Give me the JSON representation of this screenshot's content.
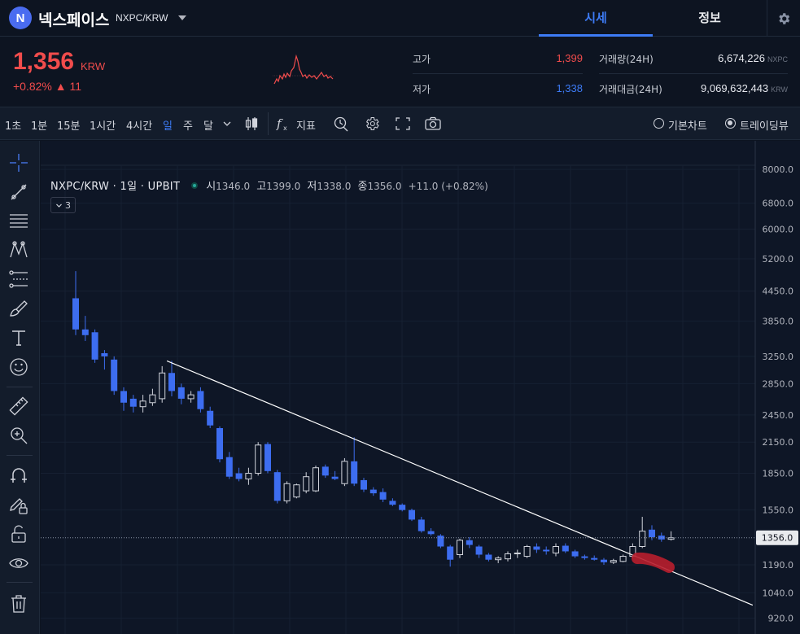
{
  "header": {
    "logo_letter": "N",
    "coin_name": "넥스페이스",
    "pair_code": "NXPC/KRW",
    "tabs": [
      {
        "label": "시세",
        "active": true
      },
      {
        "label": "정보",
        "active": false
      }
    ],
    "icons": [
      "chevron-down-icon",
      "gear-icon"
    ]
  },
  "ticker": {
    "price": "1,356",
    "unit": "KRW",
    "change_pct": "+0.82%",
    "change_arrow": "▲",
    "change_amount": "11",
    "high_label": "고가",
    "high_value": "1,399",
    "low_label": "저가",
    "low_value": "1,338",
    "volume_label": "거래량(24H)",
    "volume_value": "6,674,226",
    "volume_unit": "NXPC",
    "turnover_label": "거래대금(24H)",
    "turnover_value": "9,069,632,443",
    "turnover_unit": "KRW",
    "colors": {
      "up": "#f04c4c",
      "down": "#3d7bf5"
    }
  },
  "toolbar": {
    "intervals": [
      "1초",
      "1분",
      "15분",
      "1시간",
      "4시간",
      "일",
      "주",
      "달"
    ],
    "active_interval": "일",
    "indicator_label": "지표",
    "chart_modes": [
      {
        "label": "기본차트",
        "selected": false
      },
      {
        "label": "트레이딩뷰",
        "selected": true
      }
    ],
    "icons": [
      "chevron-down-icon",
      "candle-style-icon",
      "fx-icon",
      "alert-icon",
      "gear-icon",
      "fullscreen-icon",
      "camera-icon"
    ]
  },
  "drawing_tools": [
    "crosshair-icon",
    "trendline-icon",
    "fib-icon",
    "pattern-icon",
    "projection-icon",
    "brush-icon",
    "text-icon",
    "emoji-icon",
    "ruler-icon",
    "zoom-icon",
    "magnet-icon",
    "lock-draw-icon",
    "lock-icon",
    "eye-icon",
    "trash-icon"
  ],
  "legend": {
    "symbol": "NXPC/KRW · 1일 · UPBIT",
    "open_label": "시",
    "open": "1346.0",
    "high_label": "고",
    "high": "1399.0",
    "low_label": "저",
    "low": "1338.0",
    "close_label": "종",
    "close": "1356.0",
    "change": "+11.0 (+0.82%)",
    "indicator_count": "3"
  },
  "chart_data": {
    "type": "candlestick",
    "symbol": "NXPC/KRW",
    "interval": "1일",
    "exchange": "UPBIT",
    "y_scale": "log",
    "y_ticks": [
      8000,
      6800,
      6000,
      5200,
      4450,
      3850,
      3250,
      2850,
      2450,
      2150,
      1850,
      1550,
      1190,
      1040,
      920
    ],
    "ylim": [
      880,
      8100
    ],
    "last_price_label": "1356.0",
    "colors": {
      "up": "#d1d4dc",
      "down": "#3d6df0",
      "trendline": "#ffffff",
      "highlight": "#b81e2e"
    },
    "candles": [
      {
        "o": 4300,
        "h": 4900,
        "l": 3600,
        "c": 3700
      },
      {
        "o": 3700,
        "h": 3950,
        "l": 3500,
        "c": 3600
      },
      {
        "o": 3650,
        "h": 3700,
        "l": 3150,
        "c": 3200
      },
      {
        "o": 3300,
        "h": 3350,
        "l": 3050,
        "c": 3250
      },
      {
        "o": 3200,
        "h": 3250,
        "l": 2700,
        "c": 2750
      },
      {
        "o": 2750,
        "h": 2800,
        "l": 2500,
        "c": 2600
      },
      {
        "o": 2650,
        "h": 2700,
        "l": 2480,
        "c": 2550
      },
      {
        "o": 2550,
        "h": 2700,
        "l": 2480,
        "c": 2620
      },
      {
        "o": 2600,
        "h": 2780,
        "l": 2560,
        "c": 2700
      },
      {
        "o": 2650,
        "h": 3100,
        "l": 2600,
        "c": 3000
      },
      {
        "o": 3000,
        "h": 3180,
        "l": 2680,
        "c": 2750
      },
      {
        "o": 2800,
        "h": 2850,
        "l": 2580,
        "c": 2650
      },
      {
        "o": 2650,
        "h": 2750,
        "l": 2600,
        "c": 2700
      },
      {
        "o": 2750,
        "h": 2800,
        "l": 2480,
        "c": 2520
      },
      {
        "o": 2500,
        "h": 2550,
        "l": 2300,
        "c": 2330
      },
      {
        "o": 2300,
        "h": 2320,
        "l": 1950,
        "c": 1980
      },
      {
        "o": 2000,
        "h": 2050,
        "l": 1800,
        "c": 1820
      },
      {
        "o": 1850,
        "h": 1900,
        "l": 1780,
        "c": 1800
      },
      {
        "o": 1800,
        "h": 1900,
        "l": 1750,
        "c": 1850
      },
      {
        "o": 1850,
        "h": 2150,
        "l": 1830,
        "c": 2120
      },
      {
        "o": 2130,
        "h": 2150,
        "l": 1850,
        "c": 1870
      },
      {
        "o": 1860,
        "h": 1880,
        "l": 1600,
        "c": 1620
      },
      {
        "o": 1620,
        "h": 1780,
        "l": 1600,
        "c": 1760
      },
      {
        "o": 1650,
        "h": 1760,
        "l": 1640,
        "c": 1750
      },
      {
        "o": 1700,
        "h": 1860,
        "l": 1680,
        "c": 1820
      },
      {
        "o": 1700,
        "h": 1920,
        "l": 1690,
        "c": 1900
      },
      {
        "o": 1910,
        "h": 1930,
        "l": 1810,
        "c": 1830
      },
      {
        "o": 1820,
        "h": 1870,
        "l": 1790,
        "c": 1800
      },
      {
        "o": 1760,
        "h": 1990,
        "l": 1740,
        "c": 1960
      },
      {
        "o": 1960,
        "h": 2200,
        "l": 1740,
        "c": 1760
      },
      {
        "o": 1790,
        "h": 1810,
        "l": 1690,
        "c": 1710
      },
      {
        "o": 1710,
        "h": 1730,
        "l": 1660,
        "c": 1680
      },
      {
        "o": 1690,
        "h": 1720,
        "l": 1610,
        "c": 1630
      },
      {
        "o": 1620,
        "h": 1640,
        "l": 1580,
        "c": 1590
      },
      {
        "o": 1590,
        "h": 1600,
        "l": 1540,
        "c": 1550
      },
      {
        "o": 1550,
        "h": 1560,
        "l": 1470,
        "c": 1480
      },
      {
        "o": 1480,
        "h": 1500,
        "l": 1390,
        "c": 1400
      },
      {
        "o": 1400,
        "h": 1420,
        "l": 1370,
        "c": 1380
      },
      {
        "o": 1370,
        "h": 1380,
        "l": 1290,
        "c": 1300
      },
      {
        "o": 1300,
        "h": 1310,
        "l": 1180,
        "c": 1220
      },
      {
        "o": 1250,
        "h": 1350,
        "l": 1230,
        "c": 1340
      },
      {
        "o": 1340,
        "h": 1360,
        "l": 1290,
        "c": 1310
      },
      {
        "o": 1300,
        "h": 1310,
        "l": 1230,
        "c": 1250
      },
      {
        "o": 1250,
        "h": 1260,
        "l": 1210,
        "c": 1220
      },
      {
        "o": 1220,
        "h": 1240,
        "l": 1200,
        "c": 1230
      },
      {
        "o": 1225,
        "h": 1270,
        "l": 1210,
        "c": 1255
      },
      {
        "o": 1255,
        "h": 1280,
        "l": 1230,
        "c": 1260
      },
      {
        "o": 1240,
        "h": 1310,
        "l": 1230,
        "c": 1300
      },
      {
        "o": 1300,
        "h": 1320,
        "l": 1260,
        "c": 1280
      },
      {
        "o": 1280,
        "h": 1300,
        "l": 1250,
        "c": 1270
      },
      {
        "o": 1260,
        "h": 1320,
        "l": 1240,
        "c": 1300
      },
      {
        "o": 1305,
        "h": 1320,
        "l": 1260,
        "c": 1270
      },
      {
        "o": 1270,
        "h": 1280,
        "l": 1230,
        "c": 1240
      },
      {
        "o": 1240,
        "h": 1250,
        "l": 1220,
        "c": 1230
      },
      {
        "o": 1230,
        "h": 1245,
        "l": 1215,
        "c": 1220
      },
      {
        "o": 1220,
        "h": 1230,
        "l": 1190,
        "c": 1205
      },
      {
        "o": 1205,
        "h": 1225,
        "l": 1195,
        "c": 1215
      },
      {
        "o": 1210,
        "h": 1250,
        "l": 1205,
        "c": 1240
      },
      {
        "o": 1240,
        "h": 1320,
        "l": 1230,
        "c": 1300
      },
      {
        "o": 1300,
        "h": 1500,
        "l": 1290,
        "c": 1400
      },
      {
        "o": 1410,
        "h": 1440,
        "l": 1340,
        "c": 1360
      },
      {
        "o": 1370,
        "h": 1390,
        "l": 1330,
        "c": 1345
      },
      {
        "o": 1346,
        "h": 1399,
        "l": 1338,
        "c": 1356
      }
    ],
    "trendline": [
      {
        "index": 9.5,
        "price": 3180
      },
      {
        "index": 70.5,
        "price": 980
      }
    ]
  }
}
